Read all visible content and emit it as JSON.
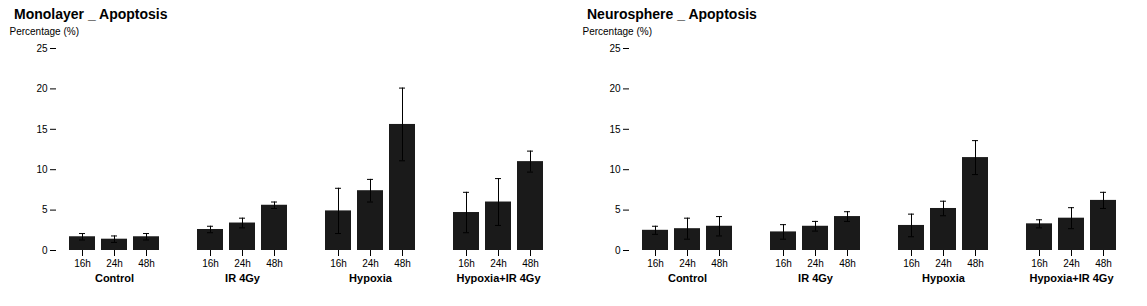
{
  "chart_data": [
    {
      "type": "bar",
      "title": "Monolayer _ Apoptosis",
      "ylabel": "Percentage (%)",
      "categories": [
        "Control",
        "IR 4Gy",
        "Hypoxia",
        "Hypoxia+IR 4Gy"
      ],
      "series": [
        {
          "name": "16h",
          "color": "#1a1a1a",
          "values": [
            1.7,
            2.6,
            4.9,
            4.7
          ],
          "errors": [
            0.4,
            0.4,
            2.8,
            2.5
          ]
        },
        {
          "name": "24h",
          "color": "#1a1a1a",
          "values": [
            1.4,
            3.4,
            7.4,
            6.0
          ],
          "errors": [
            0.4,
            0.6,
            1.4,
            2.9
          ]
        },
        {
          "name": "48h",
          "color": "#1a1a1a",
          "values": [
            1.7,
            5.6,
            15.6,
            11.0
          ],
          "errors": [
            0.4,
            0.4,
            4.5,
            1.3
          ]
        }
      ],
      "ylim": [
        0,
        25
      ],
      "yticks": [
        0,
        5,
        10,
        15,
        20,
        25
      ]
    },
    {
      "type": "bar",
      "title": "Neurosphere _ Apoptosis",
      "ylabel": "Percentage (%)",
      "categories": [
        "Control",
        "IR 4Gy",
        "Hypoxia",
        "Hypoxia+IR 4Gy"
      ],
      "series": [
        {
          "name": "16h",
          "color": "#1a1a1a",
          "values": [
            2.5,
            2.3,
            3.1,
            3.3
          ],
          "errors": [
            0.5,
            0.9,
            1.4,
            0.5
          ]
        },
        {
          "name": "24h",
          "color": "#1a1a1a",
          "values": [
            2.7,
            3.0,
            5.2,
            4.0
          ],
          "errors": [
            1.3,
            0.6,
            0.9,
            1.3
          ]
        },
        {
          "name": "48h",
          "color": "#1a1a1a",
          "values": [
            3.0,
            4.2,
            11.5,
            6.2
          ],
          "errors": [
            1.2,
            0.6,
            2.1,
            1.0
          ]
        }
      ],
      "ylim": [
        0,
        25
      ],
      "yticks": [
        0,
        5,
        10,
        15,
        20,
        25
      ]
    }
  ]
}
